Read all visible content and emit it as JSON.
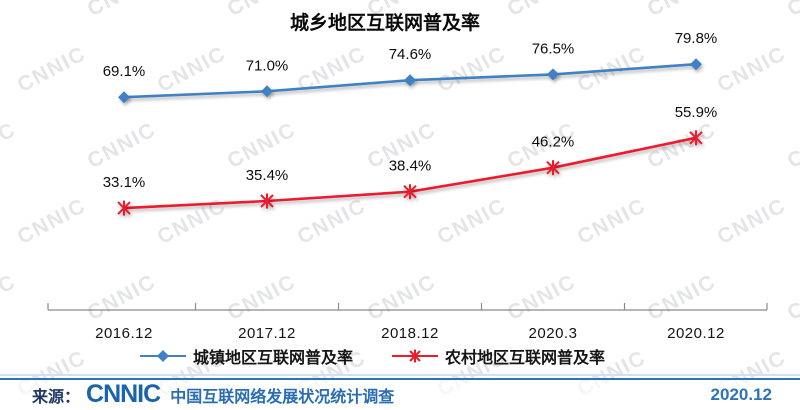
{
  "chart_data": {
    "type": "line",
    "title": "城乡地区互联网普及率",
    "categories": [
      "2016.12",
      "2017.12",
      "2018.12",
      "2020.3",
      "2020.12"
    ],
    "series": [
      {
        "name": "城镇地区互联网普及率",
        "values": [
          69.1,
          71.0,
          74.6,
          76.5,
          79.8
        ],
        "color": "#3f81c4",
        "marker": "diamond"
      },
      {
        "name": "农村地区互联网普及率",
        "values": [
          33.1,
          35.4,
          38.4,
          46.2,
          55.9
        ],
        "color": "#ec1c2d",
        "marker": "star"
      }
    ],
    "data_label_suffix": "%",
    "xlabel": "",
    "ylabel": "",
    "ylim": [
      0,
      100
    ],
    "grid": false,
    "legend_position": "bottom"
  },
  "watermark": {
    "text": "CNNIC"
  },
  "footer": {
    "source_label": "来源：",
    "logo_text": "CNNIC",
    "survey_text": "中国互联网络发展状况统计调查",
    "edition": "2020.12"
  },
  "colors": {
    "urban_line": "#3f81c4",
    "rural_line": "#ec1c2d",
    "footer_accent": "#2e74b5",
    "footer_text": "#2a6db5",
    "watermark": "#c9ccd1"
  }
}
